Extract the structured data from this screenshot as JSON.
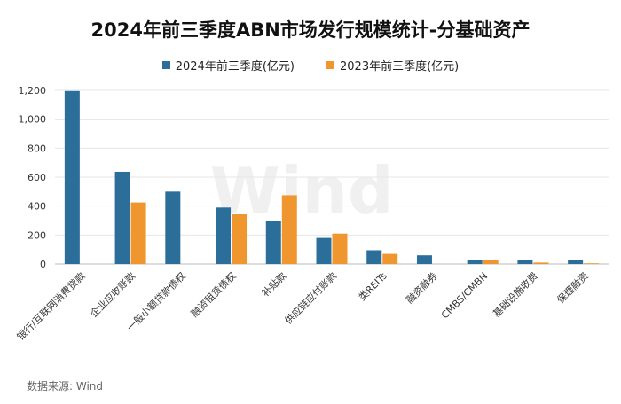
{
  "chart_data": {
    "type": "bar",
    "title": "2024年前三季度ABN市场发行规模统计-分基础资产",
    "categories": [
      "银行/互联网消费贷款",
      "企业应收账款",
      "一般小额贷款债权",
      "融资租赁债权",
      "补贴款",
      "供应链应付账款",
      "类REITs",
      "融资融券",
      "CMBS/CMBN",
      "基础设施收费",
      "保理融资"
    ],
    "series": [
      {
        "name": "2024年前三季度(亿元)",
        "color": "#2b6e9a",
        "values": [
          1195,
          637,
          500,
          390,
          300,
          180,
          95,
          60,
          30,
          25,
          25
        ]
      },
      {
        "name": "2023年前三季度(亿元)",
        "color": "#f0962e",
        "values": [
          0,
          425,
          0,
          345,
          475,
          210,
          70,
          0,
          25,
          10,
          5
        ]
      }
    ],
    "yticks": [
      "0",
      "200",
      "400",
      "600",
      "800",
      "1,000",
      "1,200"
    ],
    "ylim": [
      0,
      1200
    ],
    "grid": true,
    "legend_position": "top",
    "source": "数据来源: Wind",
    "watermark": "Wind"
  }
}
